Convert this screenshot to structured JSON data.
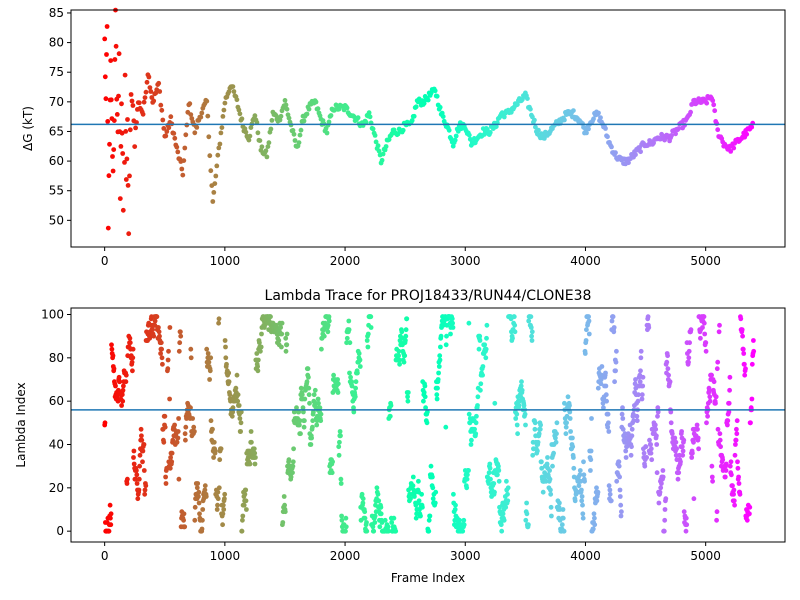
{
  "chart_data": [
    {
      "type": "scatter",
      "title": "",
      "xlabel": "",
      "ylabel": "ΔG (kT)",
      "xlim": [
        -280,
        5660
      ],
      "ylim": [
        45.5,
        85.5
      ],
      "xticks": [
        0,
        1000,
        2000,
        3000,
        4000,
        5000
      ],
      "yticks": [
        50,
        55,
        60,
        65,
        70,
        75,
        80,
        85
      ],
      "hline": 66.2,
      "grid": false,
      "colormap": "rainbow (red at frame 0 → violet at last frame)",
      "line_color": "#1f77b4",
      "approx_trace": [
        [
          0,
          80
        ],
        [
          10,
          70
        ],
        [
          20,
          82
        ],
        [
          30,
          50
        ],
        [
          40,
          62
        ],
        [
          50,
          76
        ],
        [
          60,
          66
        ],
        [
          70,
          58
        ],
        [
          80,
          68
        ],
        [
          90,
          84
        ],
        [
          100,
          72
        ],
        [
          110,
          64
        ],
        [
          120,
          79
        ],
        [
          130,
          52
        ],
        [
          140,
          70
        ],
        [
          150,
          60
        ],
        [
          160,
          46
        ],
        [
          170,
          75
        ],
        [
          180,
          55
        ],
        [
          190,
          66
        ],
        [
          200,
          48
        ],
        [
          220,
          72
        ],
        [
          250,
          64
        ],
        [
          280,
          70
        ],
        [
          320,
          68
        ],
        [
          360,
          75
        ],
        [
          400,
          70
        ],
        [
          450,
          73
        ],
        [
          500,
          64
        ],
        [
          550,
          67
        ],
        [
          600,
          62
        ],
        [
          650,
          58
        ],
        [
          700,
          70
        ],
        [
          750,
          65
        ],
        [
          800,
          68
        ],
        [
          850,
          70
        ],
        [
          900,
          53
        ],
        [
          950,
          62
        ],
        [
          1000,
          70
        ],
        [
          1050,
          73
        ],
        [
          1100,
          70
        ],
        [
          1150,
          66
        ],
        [
          1200,
          64
        ],
        [
          1250,
          68
        ],
        [
          1300,
          62
        ],
        [
          1350,
          61
        ],
        [
          1400,
          68
        ],
        [
          1450,
          67
        ],
        [
          1500,
          70
        ],
        [
          1550,
          66
        ],
        [
          1600,
          62
        ],
        [
          1650,
          67
        ],
        [
          1700,
          69
        ],
        [
          1750,
          70
        ],
        [
          1800,
          67
        ],
        [
          1850,
          65
        ],
        [
          1900,
          69
        ],
        [
          1950,
          69
        ],
        [
          2000,
          69
        ],
        [
          2050,
          68
        ],
        [
          2100,
          67
        ],
        [
          2150,
          66
        ],
        [
          2200,
          68
        ],
        [
          2250,
          64
        ],
        [
          2300,
          60
        ],
        [
          2350,
          63
        ],
        [
          2400,
          65
        ],
        [
          2450,
          65
        ],
        [
          2500,
          66
        ],
        [
          2550,
          66
        ],
        [
          2600,
          70
        ],
        [
          2650,
          70
        ],
        [
          2700,
          71
        ],
        [
          2750,
          72
        ],
        [
          2800,
          68
        ],
        [
          2850,
          66
        ],
        [
          2900,
          63
        ],
        [
          2950,
          66
        ],
        [
          3000,
          66
        ],
        [
          3050,
          63
        ],
        [
          3100,
          64
        ],
        [
          3150,
          65
        ],
        [
          3200,
          65
        ],
        [
          3250,
          66
        ],
        [
          3300,
          68
        ],
        [
          3350,
          68
        ],
        [
          3400,
          69
        ],
        [
          3450,
          70
        ],
        [
          3500,
          71
        ],
        [
          3550,
          68
        ],
        [
          3600,
          65
        ],
        [
          3650,
          64
        ],
        [
          3700,
          65
        ],
        [
          3750,
          66
        ],
        [
          3800,
          67
        ],
        [
          3850,
          68
        ],
        [
          3900,
          68
        ],
        [
          3950,
          67
        ],
        [
          4000,
          65
        ],
        [
          4050,
          67
        ],
        [
          4100,
          68
        ],
        [
          4150,
          66
        ],
        [
          4200,
          63
        ],
        [
          4250,
          61
        ],
        [
          4300,
          60
        ],
        [
          4350,
          60
        ],
        [
          4400,
          61
        ],
        [
          4450,
          62
        ],
        [
          4500,
          63
        ],
        [
          4550,
          63
        ],
        [
          4600,
          64
        ],
        [
          4650,
          64
        ],
        [
          4700,
          64
        ],
        [
          4750,
          65
        ],
        [
          4800,
          66
        ],
        [
          4850,
          67
        ],
        [
          4900,
          70
        ],
        [
          4950,
          70
        ],
        [
          5000,
          70
        ],
        [
          5050,
          71
        ],
        [
          5100,
          65
        ],
        [
          5150,
          63
        ],
        [
          5200,
          62
        ],
        [
          5250,
          63
        ],
        [
          5300,
          64
        ],
        [
          5350,
          65
        ],
        [
          5400,
          66
        ]
      ]
    },
    {
      "type": "scatter",
      "title": "Lambda Trace for PROJ18433/RUN44/CLONE38",
      "xlabel": "Frame Index",
      "ylabel": "Lambda Index",
      "xlim": [
        -280,
        5660
      ],
      "ylim": [
        -5,
        103
      ],
      "xticks": [
        0,
        1000,
        2000,
        3000,
        4000,
        5000
      ],
      "yticks": [
        0,
        20,
        40,
        60,
        80,
        100
      ],
      "hline": 56,
      "grid": false,
      "colormap": "rainbow (red at frame 0 → violet at last frame)",
      "line_color": "#1f77b4",
      "x_range": [
        0,
        5400
      ],
      "lambda_range": [
        0,
        99
      ]
    }
  ]
}
